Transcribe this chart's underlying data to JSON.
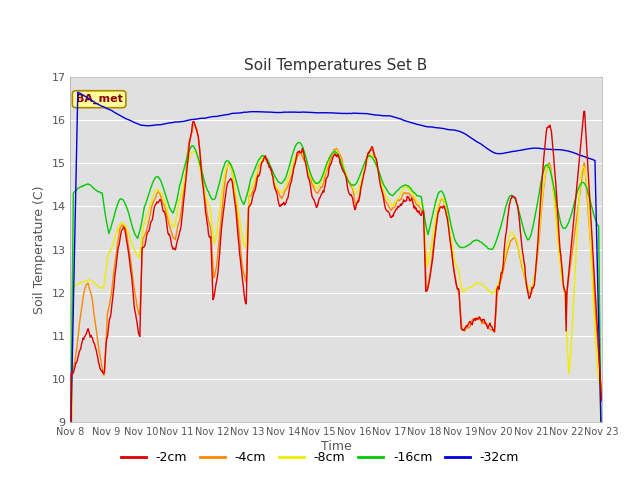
{
  "title": "Soil Temperatures Set B",
  "xlabel": "Time",
  "ylabel": "Soil Temperature (C)",
  "ylim": [
    9.0,
    17.0
  ],
  "yticks": [
    9.0,
    10.0,
    11.0,
    12.0,
    13.0,
    14.0,
    15.0,
    16.0,
    17.0
  ],
  "fig_bg_color": "#ffffff",
  "plot_bg_color": "#e0e0e0",
  "legend_label": "BA_met",
  "series_colors": {
    "-2cm": "#dd0000",
    "-4cm": "#ff8800",
    "-8cm": "#eeee00",
    "-16cm": "#00cc00",
    "-32cm": "#0000dd"
  },
  "xtick_labels": [
    "Nov 8",
    "Nov 9",
    "Nov 10",
    "Nov 11",
    "Nov 12",
    "Nov 13",
    "Nov 14",
    "Nov 15",
    "Nov 16",
    "Nov 17",
    "Nov 18",
    "Nov 19",
    "Nov 20",
    "Nov 21",
    "Nov 22",
    "Nov 23"
  ],
  "n_days": 15,
  "points_per_day": 48
}
